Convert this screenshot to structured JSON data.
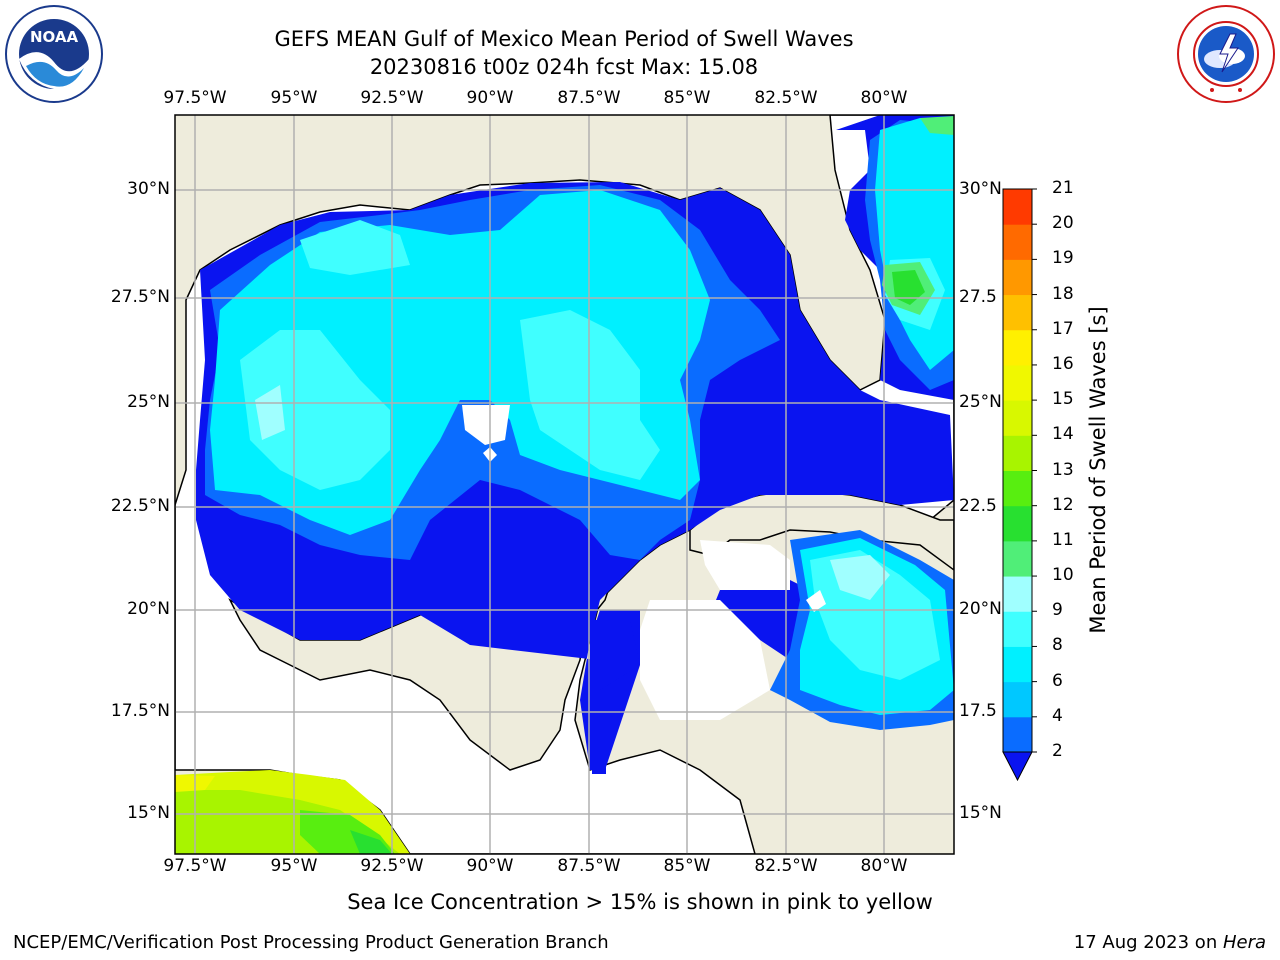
{
  "title": "GEFS MEAN Gulf of Mexico Mean Period of Swell Waves",
  "subtitle": "20230816 t00z 024h fcst   Max: 15.08",
  "top_axis_labels": [
    "97.5°W",
    "95°W",
    "92.5°W",
    "90°W",
    "87.5°W",
    "85°W",
    "82.5°W",
    "80°W"
  ],
  "bottom_axis_labels": [
    "97.5°W",
    "95°W",
    "92.5°W",
    "90°W",
    "87.5°W",
    "85°W",
    "82.5°W",
    "80°W"
  ],
  "left_axis_labels": [
    "30°N",
    "27.5°N",
    "25°N",
    "22.5°N",
    "20°N",
    "17.5°N",
    "15°N"
  ],
  "right_axis_labels": [
    "30°N",
    "27.5",
    "25°N",
    "22.5",
    "20°N",
    "17.5",
    "15°N"
  ],
  "colorbar": {
    "title": "Mean Period of Swell Waves [s]",
    "levels": [
      "2",
      "4",
      "6",
      "8",
      "9",
      "10",
      "11",
      "12",
      "13",
      "14",
      "15",
      "16",
      "17",
      "18",
      "19",
      "20",
      "21"
    ],
    "colors": [
      "#0a6cff",
      "#00c8ff",
      "#00f0ff",
      "#40ffff",
      "#a0ffff",
      "#50ee78",
      "#28e030",
      "#58ee10",
      "#a8f400",
      "#d8f800",
      "#f0f800",
      "#fff000",
      "#ffc000",
      "#ff9800",
      "#ff6a00",
      "#ff3a00"
    ]
  },
  "colors": {
    "land": "#eeecdc",
    "ocean_dark": "#0a14f0",
    "ocean_mid": "#0a6cff",
    "ocean_light": "#00f0ff",
    "ocean_pale": "#40ffff",
    "grid": "#b0b0b0"
  },
  "ice_note": "Sea Ice Concentration > 15% is shown in pink to yellow",
  "footer_left": "NCEP/EMC/Verification Post Processing Product Generation Branch",
  "footer_right_prefix": "17 Aug 2023 on ",
  "footer_right_host": "Hera",
  "logos": {
    "left": "NOAA",
    "left_ring": "NATIONAL OCEANIC AND ATMOSPHERIC ADMINISTRATION",
    "right_ring": "NATIONAL WEATHER SERVICE"
  }
}
